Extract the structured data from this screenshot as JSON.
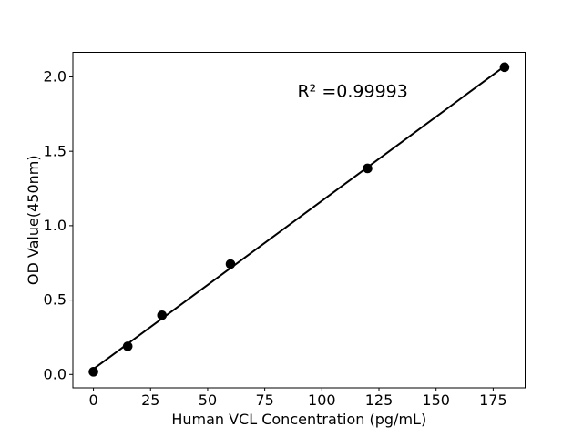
{
  "figure": {
    "background": "#ffffff"
  },
  "chart_data": {
    "type": "scatter",
    "title": "",
    "xlabel": "Human VCL Concentration (pg/mL)",
    "ylabel": "OD Value(450nm)",
    "x": [
      0,
      15,
      30,
      60,
      120,
      180
    ],
    "y": [
      0.018,
      0.189,
      0.398,
      0.742,
      1.385,
      2.065
    ],
    "fit_line": {
      "type": "linear",
      "x_start": 0,
      "x_end": 180
    },
    "annotation": {
      "text": "R² =0.99993",
      "x": 113.5,
      "y": 1.905
    },
    "xlim": [
      -9,
      189
    ],
    "ylim": [
      -0.09,
      2.165
    ],
    "xticks": [
      0,
      25,
      50,
      75,
      100,
      125,
      150,
      175
    ],
    "xtick_labels": [
      "0",
      "25",
      "50",
      "75",
      "100",
      "125",
      "150",
      "175"
    ],
    "yticks": [
      0.0,
      0.5,
      1.0,
      1.5,
      2.0
    ],
    "ytick_labels": [
      "0.0",
      "0.5",
      "1.0",
      "1.5",
      "2.0"
    ],
    "grid": false,
    "legend": null,
    "colors": {
      "axis": "#000000",
      "text": "#000000",
      "marker": "#000000",
      "line": "#000000",
      "plot_background": "#ffffff"
    }
  }
}
